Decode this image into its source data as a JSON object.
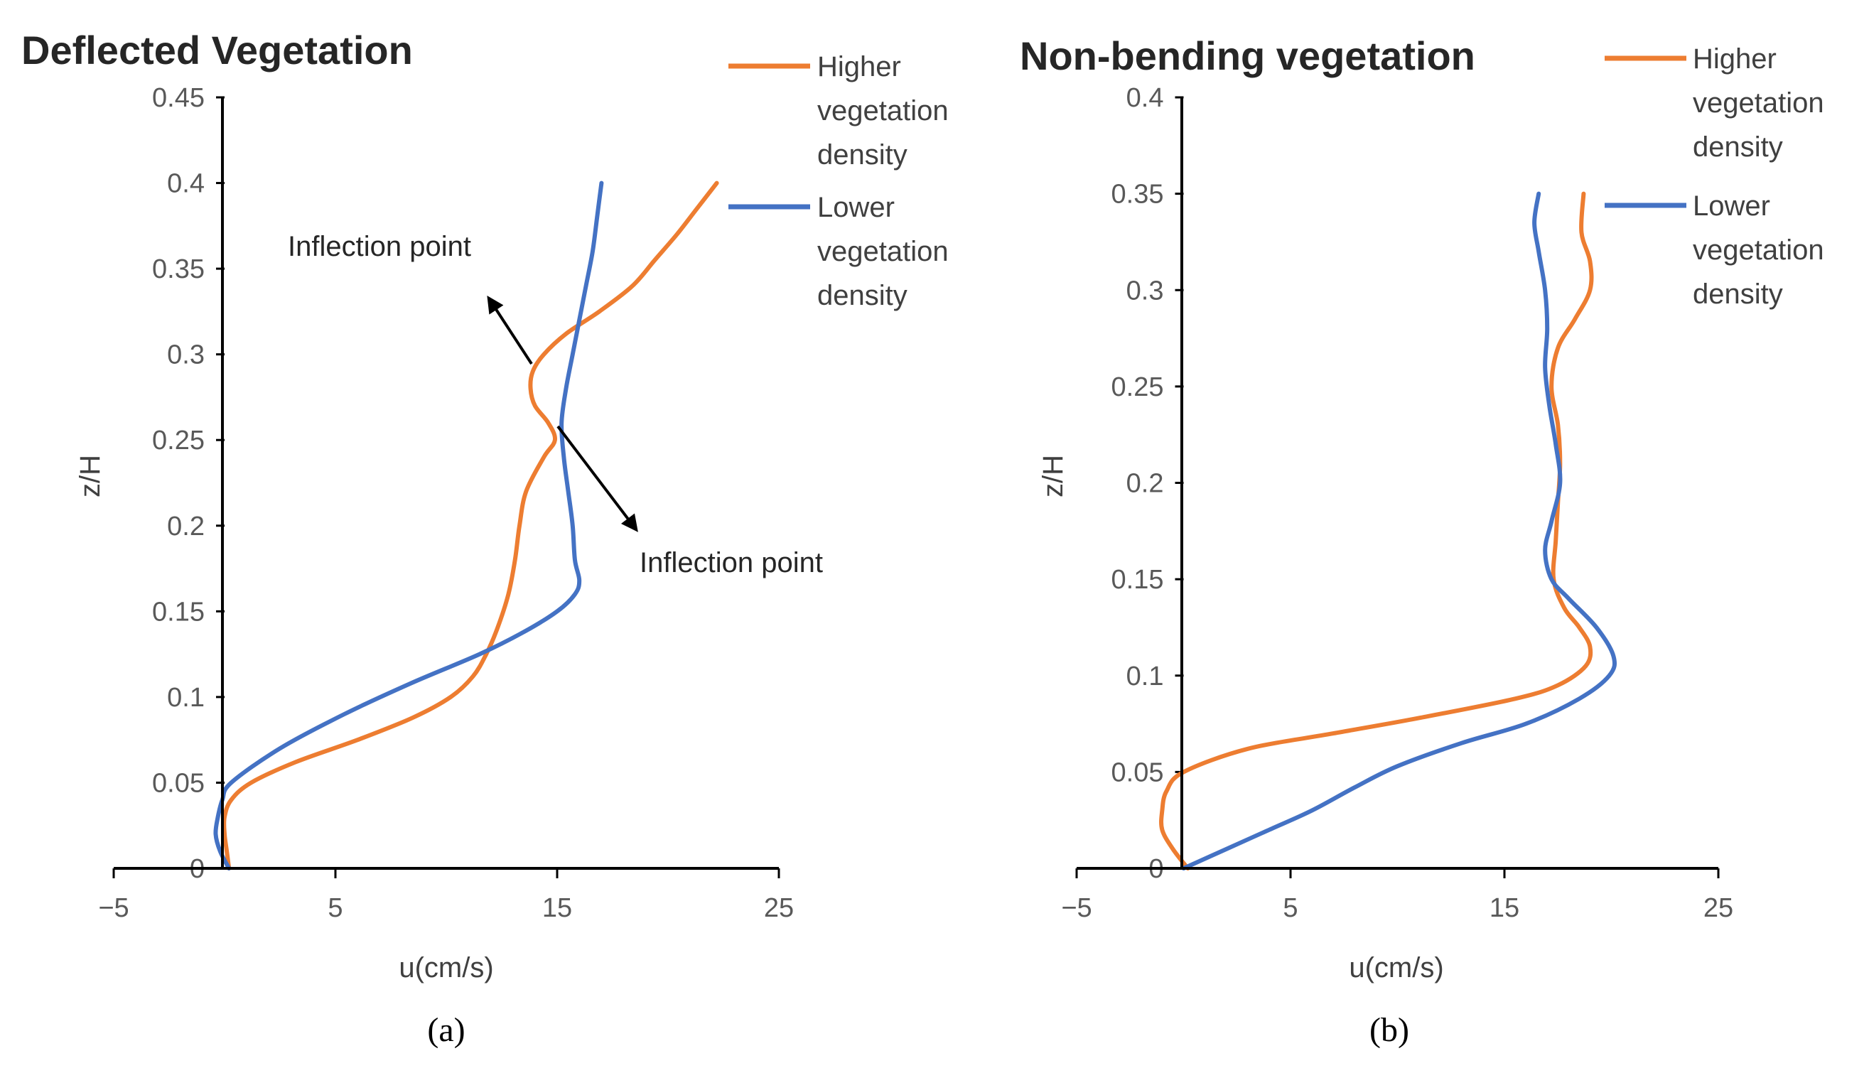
{
  "colors": {
    "higher": "#ED7D31",
    "lower": "#4472C4",
    "axis": "#000000",
    "arrow": "#000000"
  },
  "chart_data": [
    {
      "type": "line",
      "title": "Deflected Vegetation",
      "caption": "(a)",
      "xlabel": "u(cm/s)",
      "ylabel": "z/H",
      "xlim": [
        -5,
        25
      ],
      "ylim": [
        0,
        0.45
      ],
      "xticks": [
        "−5",
        "5",
        "15",
        "25"
      ],
      "yticks": [
        "0",
        "0.05",
        "0.1",
        "0.15",
        "0.2",
        "0.25",
        "0.3",
        "0.35",
        "0.4",
        "0.45"
      ],
      "legend_position": "right",
      "legend_lines": [
        [
          "Higher",
          "vegetation",
          "density"
        ],
        [
          "Lower",
          "vegetation",
          "density"
        ]
      ],
      "grid": false,
      "series": [
        {
          "name": "Higher vegetation density",
          "color_key": "higher",
          "points": [
            [
              0.2,
              0
            ],
            [
              0.1,
              0.01
            ],
            [
              0.0,
              0.02
            ],
            [
              0.0,
              0.03
            ],
            [
              0.3,
              0.04
            ],
            [
              1.2,
              0.05
            ],
            [
              3.2,
              0.062
            ],
            [
              6.0,
              0.075
            ],
            [
              8.5,
              0.088
            ],
            [
              10.2,
              0.1
            ],
            [
              11.2,
              0.112
            ],
            [
              11.8,
              0.125
            ],
            [
              12.3,
              0.14
            ],
            [
              12.8,
              0.16
            ],
            [
              13.1,
              0.18
            ],
            [
              13.3,
              0.2
            ],
            [
              13.6,
              0.22
            ],
            [
              14.4,
              0.24
            ],
            [
              14.9,
              0.25
            ],
            [
              14.6,
              0.26
            ],
            [
              14.0,
              0.27
            ],
            [
              13.8,
              0.28
            ],
            [
              13.9,
              0.29
            ],
            [
              14.4,
              0.3
            ],
            [
              15.4,
              0.312
            ],
            [
              16.9,
              0.325
            ],
            [
              18.4,
              0.34
            ],
            [
              19.4,
              0.355
            ],
            [
              20.4,
              0.37
            ],
            [
              21.3,
              0.385
            ],
            [
              22.2,
              0.4
            ]
          ]
        },
        {
          "name": "Lower vegetation density",
          "color_key": "lower",
          "points": [
            [
              0.2,
              0
            ],
            [
              -0.2,
              0.01
            ],
            [
              -0.4,
              0.02
            ],
            [
              -0.3,
              0.03
            ],
            [
              -0.1,
              0.04
            ],
            [
              0.3,
              0.05
            ],
            [
              2.5,
              0.07
            ],
            [
              5.4,
              0.09
            ],
            [
              8.4,
              0.108
            ],
            [
              11.5,
              0.125
            ],
            [
              13.5,
              0.138
            ],
            [
              15.0,
              0.15
            ],
            [
              15.8,
              0.16
            ],
            [
              16.0,
              0.168
            ],
            [
              15.8,
              0.18
            ],
            [
              15.7,
              0.2
            ],
            [
              15.5,
              0.22
            ],
            [
              15.3,
              0.24
            ],
            [
              15.2,
              0.26
            ],
            [
              15.4,
              0.28
            ],
            [
              15.7,
              0.3
            ],
            [
              16.0,
              0.32
            ],
            [
              16.3,
              0.34
            ],
            [
              16.6,
              0.36
            ],
            [
              16.8,
              0.38
            ],
            [
              17.0,
              0.4
            ]
          ]
        }
      ],
      "annotations": [
        "Inflection point",
        "Inflection point"
      ]
    },
    {
      "type": "line",
      "title": "Non-bending vegetation",
      "caption": "(b)",
      "xlabel": "u(cm/s)",
      "ylabel": "z/H",
      "xlim": [
        -5,
        25
      ],
      "ylim": [
        0,
        0.4
      ],
      "xticks": [
        "−5",
        "5",
        "15",
        "25"
      ],
      "yticks": [
        "0",
        "0.05",
        "0.1",
        "0.15",
        "0.2",
        "0.25",
        "0.3",
        "0.35",
        "0.4"
      ],
      "legend_position": "right",
      "legend_lines": [
        [
          "Higher",
          "vegetation",
          "density"
        ],
        [
          "Lower",
          "vegetation",
          "density"
        ]
      ],
      "grid": false,
      "series": [
        {
          "name": "Higher vegetation density",
          "color_key": "higher",
          "points": [
            [
              0.2,
              0
            ],
            [
              -0.5,
              0.01
            ],
            [
              -1.0,
              0.02
            ],
            [
              -1.0,
              0.03
            ],
            [
              -0.8,
              0.04
            ],
            [
              0.0,
              0.05
            ],
            [
              3.0,
              0.062
            ],
            [
              7.0,
              0.07
            ],
            [
              11.0,
              0.078
            ],
            [
              15.5,
              0.088
            ],
            [
              17.5,
              0.095
            ],
            [
              18.8,
              0.105
            ],
            [
              19.0,
              0.115
            ],
            [
              18.5,
              0.125
            ],
            [
              17.8,
              0.135
            ],
            [
              17.3,
              0.15
            ],
            [
              17.4,
              0.17
            ],
            [
              17.5,
              0.19
            ],
            [
              17.6,
              0.21
            ],
            [
              17.5,
              0.23
            ],
            [
              17.2,
              0.25
            ],
            [
              17.5,
              0.27
            ],
            [
              18.3,
              0.285
            ],
            [
              19.0,
              0.3
            ],
            [
              19.0,
              0.315
            ],
            [
              18.6,
              0.33
            ],
            [
              18.7,
              0.35
            ]
          ]
        },
        {
          "name": "Lower vegetation density",
          "color_key": "lower",
          "points": [
            [
              0.0,
              0
            ],
            [
              2.0,
              0.01
            ],
            [
              4.0,
              0.02
            ],
            [
              6.0,
              0.03
            ],
            [
              8.0,
              0.042
            ],
            [
              10.0,
              0.053
            ],
            [
              13.0,
              0.065
            ],
            [
              16.0,
              0.075
            ],
            [
              18.5,
              0.088
            ],
            [
              19.9,
              0.1
            ],
            [
              20.1,
              0.11
            ],
            [
              19.3,
              0.125
            ],
            [
              18.0,
              0.14
            ],
            [
              17.2,
              0.15
            ],
            [
              16.9,
              0.165
            ],
            [
              17.2,
              0.18
            ],
            [
              17.6,
              0.2
            ],
            [
              17.4,
              0.22
            ],
            [
              17.1,
              0.24
            ],
            [
              16.9,
              0.26
            ],
            [
              17.0,
              0.28
            ],
            [
              16.9,
              0.3
            ],
            [
              16.6,
              0.32
            ],
            [
              16.4,
              0.335
            ],
            [
              16.6,
              0.35
            ]
          ]
        }
      ]
    }
  ]
}
